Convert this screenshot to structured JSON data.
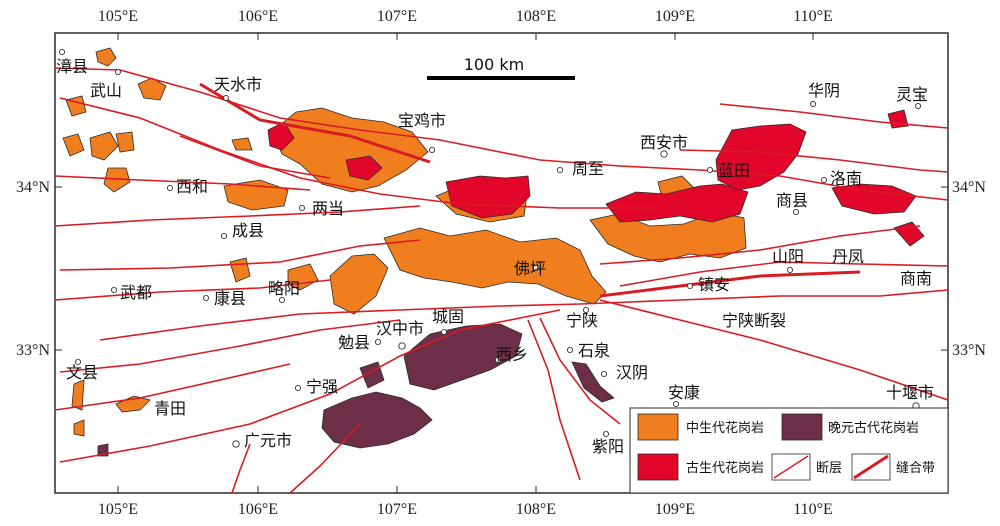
{
  "colors": {
    "mesozoic": "#f07e1f",
    "paleozoic": "#e2062b",
    "neoproterozoic": "#6d2f48",
    "fault": "#d91b23",
    "border": "#2b2b2b"
  },
  "axes": {
    "top": [
      "105°E",
      "106°E",
      "107°E",
      "108°E",
      "109°E",
      "110°E"
    ],
    "bottom": [
      "105°E",
      "106°E",
      "107°E",
      "108°E",
      "109°E",
      "110°E"
    ],
    "left": [
      "34°N",
      "33°N"
    ],
    "right": [
      "34°N",
      "33°N"
    ]
  },
  "scale": {
    "label": "100 km"
  },
  "places": [
    "漳县",
    "武山",
    "天水市",
    "宝鸡市",
    "西安市",
    "华阴",
    "灵宝",
    "西和",
    "两当",
    "周至",
    "蓝田",
    "洛南",
    "商县",
    "成县",
    "佛坪",
    "山阳",
    "丹凤",
    "商南",
    "武都",
    "康县",
    "略阳",
    "镇安",
    "城固",
    "宁陕",
    "宁陕断裂",
    "勉县",
    "汉中市",
    "西乡",
    "石泉",
    "文县",
    "宁强",
    "汉阴",
    "安康",
    "青田",
    "十堰市",
    "广元市",
    "紫阳"
  ],
  "legend": {
    "mesozoic": "中生代花岗岩",
    "neoproterozoic": "晚元古代花岗岩",
    "paleozoic": "古生代花岗岩",
    "fault": "断层",
    "suture": "缝合带"
  }
}
